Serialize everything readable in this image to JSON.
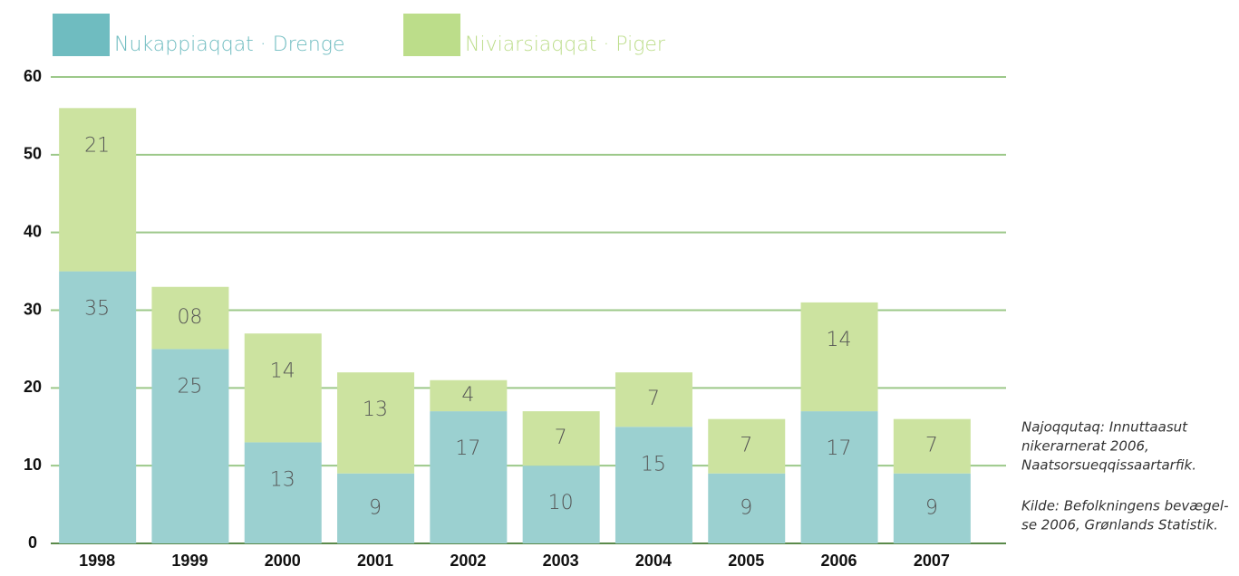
{
  "chart_data": {
    "type": "stacked_bar",
    "categories": [
      "1998",
      "1999",
      "2000",
      "2001",
      "2002",
      "2003",
      "2004",
      "2005",
      "2006",
      "2007"
    ],
    "series": [
      {
        "name": "Nukappiaqqat · Drenge",
        "color": "#9bd0d0",
        "legend_color": "#6fbcc0",
        "values": [
          35,
          25,
          13,
          9,
          17,
          10,
          15,
          9,
          17,
          9
        ]
      },
      {
        "name": "Niviarsiaqqat · Piger",
        "color": "#cce3a0",
        "legend_color": "#bcdd8a",
        "values": [
          21,
          8,
          14,
          13,
          4,
          7,
          7,
          7,
          14,
          7
        ],
        "value_labels": [
          "21",
          "08",
          "14",
          "13",
          "4",
          "7",
          "7",
          "7",
          "14",
          "7"
        ]
      }
    ],
    "ylim": [
      0,
      60
    ],
    "yticks": [
      0,
      10,
      20,
      30,
      40,
      50,
      60
    ],
    "grid": true,
    "notes": [
      [
        "Najoqqutaq: Innuttaasut",
        "nikerarnerat 2006,",
        "Naatsorsueqqissaartarfik."
      ],
      [
        "Kilde: Befolkningens bevægel-",
        "se 2006, Grønlands Statistik."
      ]
    ]
  }
}
